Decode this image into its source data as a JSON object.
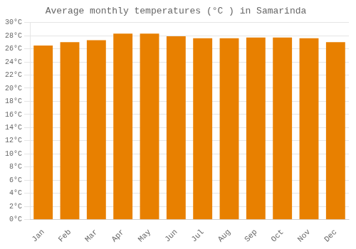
{
  "chart_data": {
    "type": "bar",
    "title": "Average monthly temperatures (°C ) in Samarinda",
    "categories": [
      "Jan",
      "Feb",
      "Mar",
      "Apr",
      "May",
      "Jun",
      "Jul",
      "Aug",
      "Sep",
      "Oct",
      "Nov",
      "Dec"
    ],
    "values": [
      26.5,
      27.0,
      27.3,
      28.3,
      28.3,
      27.9,
      27.6,
      27.6,
      27.7,
      27.7,
      27.6,
      27.0
    ],
    "color": "#E88000",
    "ylim": [
      0,
      30
    ],
    "yticks": [
      {
        "value": 0,
        "label": "0°C"
      },
      {
        "value": 2,
        "label": "2°C"
      },
      {
        "value": 4,
        "label": "4°C"
      },
      {
        "value": 6,
        "label": "6°C"
      },
      {
        "value": 8,
        "label": "8°C"
      },
      {
        "value": 10,
        "label": "10°C"
      },
      {
        "value": 12,
        "label": "12°C"
      },
      {
        "value": 14,
        "label": "14°C"
      },
      {
        "value": 16,
        "label": "16°C"
      },
      {
        "value": 18,
        "label": "18°C"
      },
      {
        "value": 20,
        "label": "20°C"
      },
      {
        "value": 22,
        "label": "22°C"
      },
      {
        "value": 24,
        "label": "24°C"
      },
      {
        "value": 26,
        "label": "26°C"
      },
      {
        "value": 28,
        "label": "28°C"
      },
      {
        "value": 30,
        "label": "30°C"
      }
    ],
    "grid": true
  }
}
